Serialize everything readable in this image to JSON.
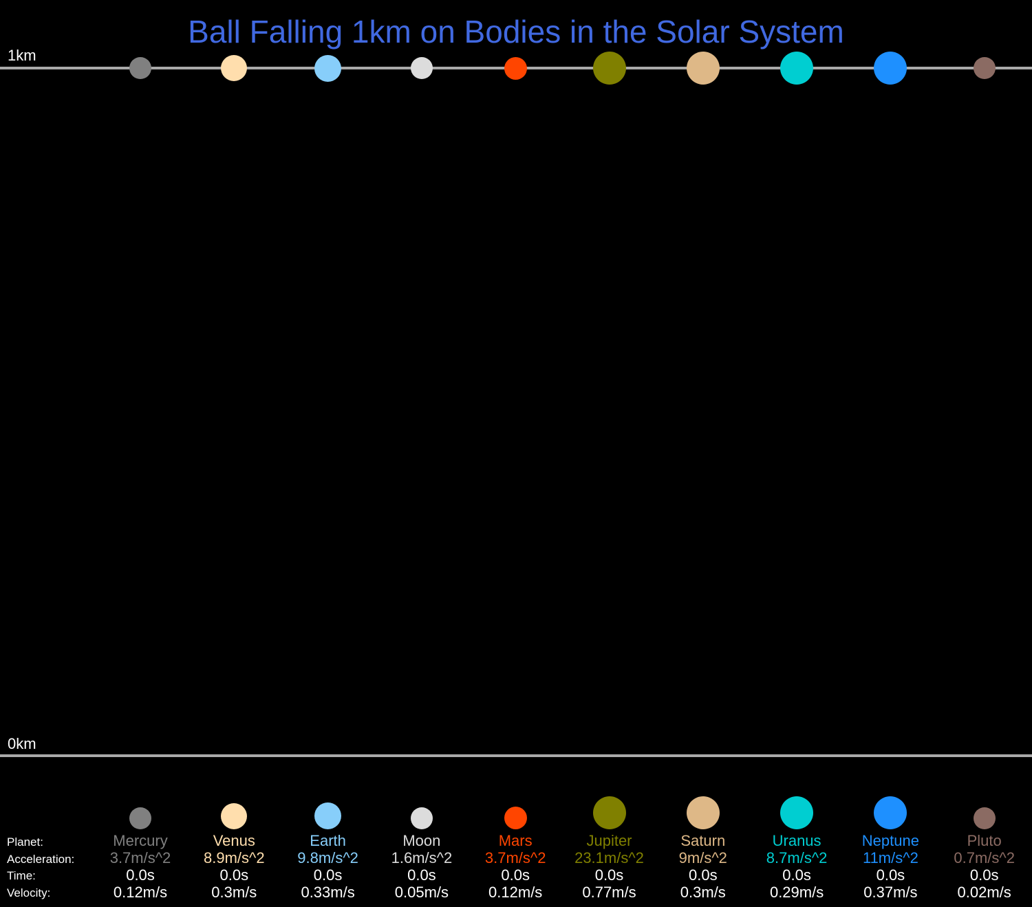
{
  "title": "Ball Falling 1km on Bodies in the Solar System",
  "scale": {
    "top_label": "1km",
    "bottom_label": "0km"
  },
  "row_labels": {
    "planet": "Planet:",
    "acceleration": "Acceleration:",
    "time": "Time:",
    "velocity": "Velocity:"
  },
  "colors": {
    "background": "#000000",
    "title": "#4169E1",
    "lines": "#A9A9A9",
    "text": "#FFFFFF"
  },
  "bodies": [
    {
      "name": "Mercury",
      "acceleration": "3.7m/s^2",
      "time": "0.0s",
      "velocity": "0.12m/s",
      "color": "#808080",
      "relative_size": 0.38,
      "fall_fraction": 0.0
    },
    {
      "name": "Venus",
      "acceleration": "8.9m/s^2",
      "time": "0.0s",
      "velocity": "0.3m/s",
      "color": "#FFDEAD",
      "relative_size": 0.95,
      "fall_fraction": 0.0
    },
    {
      "name": "Earth",
      "acceleration": "9.8m/s^2",
      "time": "0.0s",
      "velocity": "0.33m/s",
      "color": "#87CEFA",
      "relative_size": 1.0,
      "fall_fraction": 0.0
    },
    {
      "name": "Moon",
      "acceleration": "1.6m/s^2",
      "time": "0.0s",
      "velocity": "0.05m/s",
      "color": "#DCDCDC",
      "relative_size": 0.27,
      "fall_fraction": 0.0
    },
    {
      "name": "Mars",
      "acceleration": "3.7m/s^2",
      "time": "0.0s",
      "velocity": "0.12m/s",
      "color": "#FF4500",
      "relative_size": 0.53,
      "fall_fraction": 0.0
    },
    {
      "name": "Jupiter",
      "acceleration": "23.1m/s^2",
      "time": "0.0s",
      "velocity": "0.77m/s",
      "color": "#808000",
      "relative_size": 11.2,
      "fall_fraction": 0.0
    },
    {
      "name": "Saturn",
      "acceleration": "9m/s^2",
      "time": "0.0s",
      "velocity": "0.3m/s",
      "color": "#DEB887",
      "relative_size": 9.45,
      "fall_fraction": 0.0
    },
    {
      "name": "Uranus",
      "acceleration": "8.7m/s^2",
      "time": "0.0s",
      "velocity": "0.29m/s",
      "color": "#00CED1",
      "relative_size": 4.0,
      "fall_fraction": 0.0
    },
    {
      "name": "Neptune",
      "acceleration": "11m/s^2",
      "time": "0.0s",
      "velocity": "0.37m/s",
      "color": "#1E90FF",
      "relative_size": 3.88,
      "fall_fraction": 0.0
    },
    {
      "name": "Pluto",
      "acceleration": "0.7m/s^2",
      "time": "0.0s",
      "velocity": "0.02m/s",
      "color": "#8B6B63",
      "relative_size": 0.19,
      "fall_fraction": 0.0
    }
  ]
}
